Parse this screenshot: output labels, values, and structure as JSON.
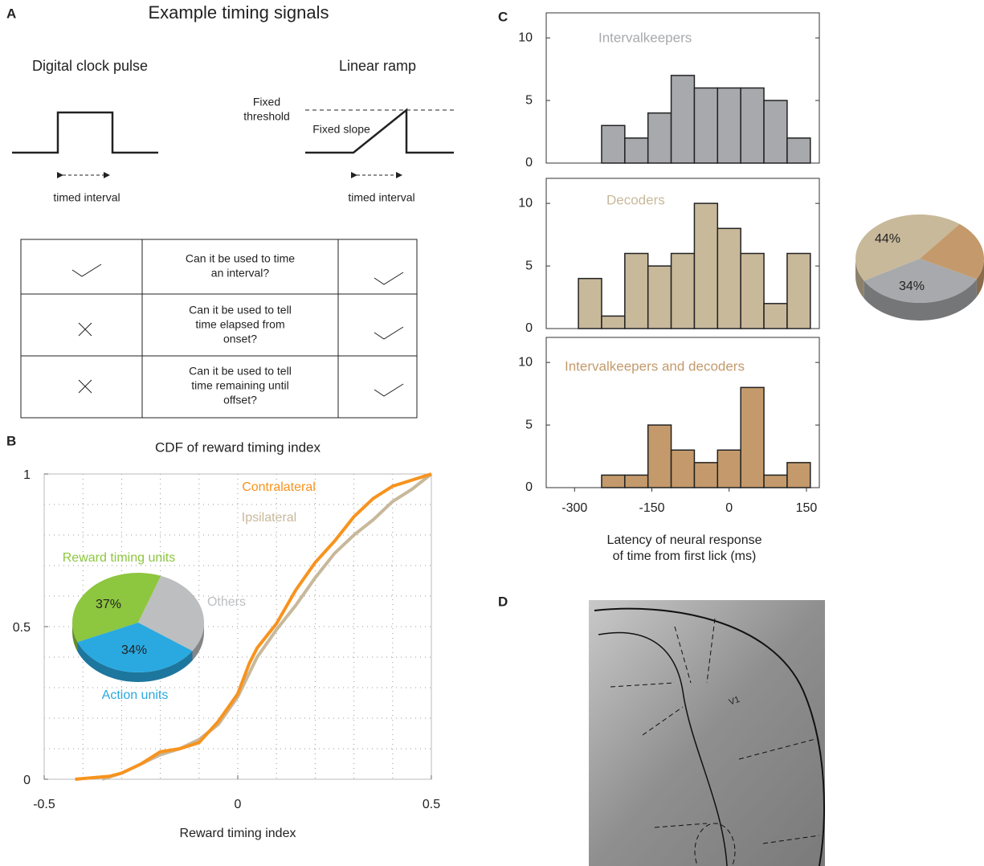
{
  "panel_labels": [
    "A",
    "B",
    "C",
    "D"
  ],
  "panel_a": {
    "title": "Example timing signals",
    "clock_title": "Digital clock pulse",
    "ramp_title": "Linear ramp",
    "threshold_label": [
      "Fixed",
      "threshold"
    ],
    "slope_label": "Fixed slope",
    "interval_label_clock": "timed interval",
    "interval_label_ramp": "timed interval",
    "table_rows": [
      [
        "Can it be used to time",
        "an interval?"
      ],
      [
        "Can it be used to tell",
        "time elapsed from",
        "onset?"
      ],
      [
        "Can it be used to tell",
        "time remaining until",
        "offset?"
      ]
    ]
  },
  "panel_d": {
    "region_label": "V1"
  },
  "chart_data": [
    {
      "type": "line",
      "title": "CDF of reward timing index",
      "xlabel": "Reward timing index",
      "xlim": [
        -0.5,
        0.5
      ],
      "ylim": [
        0,
        1
      ],
      "xticks": [
        -0.5,
        0,
        0.5
      ],
      "yticks": [
        0,
        0.5,
        1
      ],
      "grid": true,
      "grid_x": [
        -0.4,
        -0.3,
        -0.2,
        -0.1,
        0,
        0.1,
        0.2,
        0.3,
        0.4
      ],
      "grid_y": [
        0.1,
        0.2,
        0.3,
        0.4,
        0.5,
        0.6,
        0.7,
        0.8,
        0.9
      ],
      "series": [
        {
          "name": "Contralateral",
          "color": "#f7931e",
          "x": [
            -0.42,
            -0.33,
            -0.3,
            -0.25,
            -0.2,
            -0.15,
            -0.1,
            -0.05,
            0,
            0.03,
            0.05,
            0.1,
            0.15,
            0.2,
            0.25,
            0.3,
            0.35,
            0.4,
            0.45,
            0.5
          ],
          "values": [
            0,
            0.01,
            0.02,
            0.05,
            0.09,
            0.1,
            0.12,
            0.19,
            0.28,
            0.38,
            0.43,
            0.51,
            0.62,
            0.71,
            0.78,
            0.86,
            0.92,
            0.96,
            0.98,
            1
          ]
        },
        {
          "name": "Ipsilateral",
          "color": "#c8b89a",
          "x": [
            -0.35,
            -0.3,
            -0.25,
            -0.2,
            -0.15,
            -0.1,
            -0.05,
            0,
            0.05,
            0.1,
            0.15,
            0.2,
            0.25,
            0.3,
            0.35,
            0.4,
            0.45,
            0.5
          ],
          "values": [
            0,
            0.02,
            0.05,
            0.08,
            0.1,
            0.13,
            0.18,
            0.27,
            0.4,
            0.49,
            0.57,
            0.66,
            0.74,
            0.8,
            0.85,
            0.91,
            0.95,
            1
          ]
        }
      ]
    },
    {
      "type": "pie",
      "categories": [
        "Reward timing units",
        "Others",
        "Action units"
      ],
      "values": [
        37,
        29,
        34
      ],
      "value_labels": [
        "37%",
        null,
        "34%"
      ],
      "colors": [
        "#8dc63f",
        "#bcbec0",
        "#29a9e0"
      ]
    },
    {
      "type": "histogram",
      "title": "Intervalkeepers",
      "color": "#a7a9ac",
      "bins": [
        -292.5,
        -247.5,
        -202.5,
        -157.5,
        -112.5,
        -67.5,
        -22.5,
        22.5,
        67.5,
        112.5,
        157.5
      ],
      "values": [
        0,
        3,
        2,
        4,
        7,
        6,
        6,
        6,
        5,
        2
      ],
      "xlim": [
        -355,
        175
      ],
      "ylim": [
        0,
        12
      ],
      "yticks": [
        0,
        5,
        10
      ]
    },
    {
      "type": "histogram",
      "title": "Decoders",
      "color": "#c8b99a",
      "bins": [
        -292.5,
        -247.5,
        -202.5,
        -157.5,
        -112.5,
        -67.5,
        -22.5,
        22.5,
        67.5,
        112.5,
        157.5
      ],
      "values": [
        4,
        1,
        6,
        5,
        6,
        10,
        8,
        6,
        2,
        6
      ],
      "xlim": [
        -355,
        175
      ],
      "ylim": [
        0,
        12
      ],
      "yticks": [
        0,
        5,
        10
      ]
    },
    {
      "type": "histogram",
      "title": "Intervalkeepers and decoders",
      "color": "#c49a6c",
      "bins": [
        -292.5,
        -247.5,
        -202.5,
        -157.5,
        -112.5,
        -67.5,
        -22.5,
        22.5,
        67.5,
        112.5,
        157.5
      ],
      "values": [
        0,
        1,
        1,
        5,
        3,
        2,
        3,
        8,
        1,
        2
      ],
      "xlim": [
        -355,
        175
      ],
      "ylim": [
        0,
        12
      ],
      "yticks": [
        0,
        5,
        10
      ],
      "xticks": [
        -300,
        -150,
        0,
        150
      ],
      "xlabel": [
        "Latency of neural response",
        "of time from first lick (ms)"
      ]
    },
    {
      "type": "pie",
      "values": [
        44,
        22,
        34
      ],
      "value_labels": [
        "44%",
        null,
        "34%"
      ],
      "colors": [
        "#c8b99a",
        "#c49a6c",
        "#a7a9ac"
      ]
    }
  ]
}
